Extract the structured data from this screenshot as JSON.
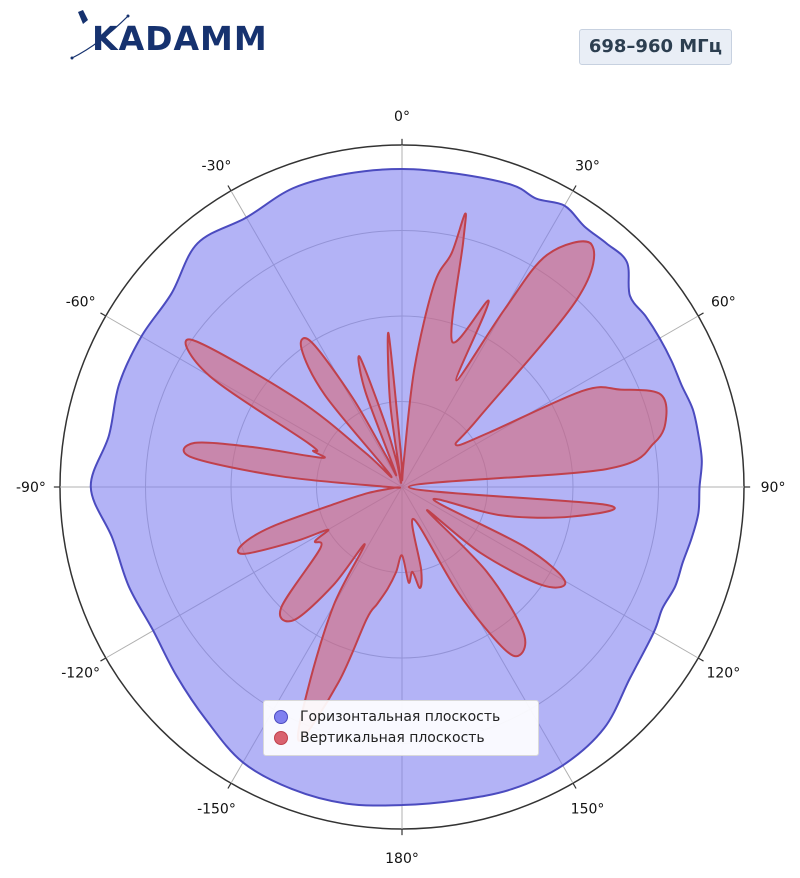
{
  "header": {
    "logo_text": "KADAMM",
    "frequency_badge": "698–960 МГц"
  },
  "colors": {
    "horizontal_fill": "#8080f0",
    "horizontal_line": "#4b4bbf",
    "vertical_fill": "#d9626f",
    "vertical_line": "#c0414c",
    "logo": "#16326f"
  },
  "legend": {
    "horizontal": "Горизонтальная плоскость",
    "vertical": "Вертикальная плоскость"
  },
  "chart_data": {
    "type": "polar",
    "theta_zero": "top",
    "theta_direction": "clockwise",
    "r_range": [
      0,
      1
    ],
    "r_ticks": [
      0.25,
      0.5,
      0.75,
      1.0
    ],
    "r_tick_labels_visible": false,
    "grid": true,
    "legend_position": "bottom-center",
    "theta_ticks": [
      0,
      30,
      60,
      90,
      120,
      150,
      180,
      -150,
      -120,
      -90,
      -60,
      -30
    ],
    "theta_tick_labels": [
      "0°",
      "30°",
      "60°",
      "90°",
      "120°",
      "150°",
      "180°",
      "-150°",
      "-120°",
      "-90°",
      "-60°",
      "-30°"
    ],
    "series": [
      {
        "name": "Горизонтальная плоскость",
        "angles_deg": [
          0,
          10,
          20,
          25,
          30,
          35,
          40,
          45,
          50,
          55,
          60,
          65,
          70,
          75,
          80,
          85,
          90,
          95,
          100,
          105,
          110,
          115,
          120,
          130,
          140,
          150,
          160,
          170,
          180,
          190,
          200,
          210,
          220,
          230,
          240,
          250,
          260,
          270,
          280,
          290,
          300,
          310,
          320,
          330,
          340,
          350
        ],
        "r": [
          0.93,
          0.93,
          0.94,
          0.93,
          0.95,
          0.93,
          0.93,
          0.93,
          0.87,
          0.87,
          0.87,
          0.87,
          0.87,
          0.88,
          0.88,
          0.88,
          0.87,
          0.87,
          0.86,
          0.85,
          0.85,
          0.84,
          0.85,
          0.87,
          0.92,
          0.94,
          0.94,
          0.93,
          0.93,
          0.94,
          0.94,
          0.93,
          0.89,
          0.86,
          0.84,
          0.85,
          0.86,
          0.91,
          0.87,
          0.88,
          0.88,
          0.88,
          0.93,
          0.91,
          0.93,
          0.93
        ]
      },
      {
        "name": "Вертикальная плоскость",
        "angles_deg": [
          0,
          4,
          6,
          9,
          12,
          13,
          14,
          19,
          25,
          27,
          30,
          32,
          38,
          43,
          48,
          52,
          58,
          62,
          66,
          70,
          75,
          80,
          85,
          90,
          95,
          100,
          106,
          112,
          116,
          120,
          125,
          130,
          133,
          135,
          140,
          145,
          148,
          152,
          160,
          167,
          170,
          173,
          176,
          180,
          184,
          188,
          192,
          195,
          198,
          202,
          205,
          210,
          213,
          215,
          219,
          225,
          233,
          238,
          240,
          243,
          247,
          250,
          253,
          256,
          260,
          265,
          270,
          275,
          278,
          282,
          285,
          290,
          292,
          295,
          300,
          305,
          310,
          313,
          316,
          320,
          324,
          328,
          331,
          333,
          336,
          339,
          342,
          345,
          348,
          350,
          352,
          355,
          358
        ],
        "r": [
          0.02,
          0.08,
          0.35,
          0.6,
          0.7,
          0.82,
          0.74,
          0.45,
          0.6,
          0.35,
          0.6,
          0.8,
          0.9,
          0.75,
          0.3,
          0.2,
          0.3,
          0.6,
          0.7,
          0.8,
          0.8,
          0.75,
          0.6,
          0.02,
          0.6,
          0.5,
          0.3,
          0.1,
          0.4,
          0.55,
          0.5,
          0.3,
          0.1,
          0.35,
          0.55,
          0.6,
          0.55,
          0.35,
          0.1,
          0.25,
          0.3,
          0.25,
          0.28,
          0.2,
          0.25,
          0.3,
          0.35,
          0.4,
          0.6,
          0.8,
          0.65,
          0.4,
          0.2,
          0.35,
          0.5,
          0.5,
          0.3,
          0.3,
          0.25,
          0.35,
          0.5,
          0.5,
          0.4,
          0.2,
          0.1,
          0.02,
          0.04,
          0.35,
          0.62,
          0.62,
          0.45,
          0.25,
          0.28,
          0.3,
          0.65,
          0.75,
          0.4,
          0.15,
          0.05,
          0.35,
          0.5,
          0.5,
          0.3,
          0.1,
          0.05,
          0.3,
          0.4,
          0.2,
          0.08,
          0.02,
          0.25,
          0.45,
          0.1
        ]
      }
    ]
  }
}
